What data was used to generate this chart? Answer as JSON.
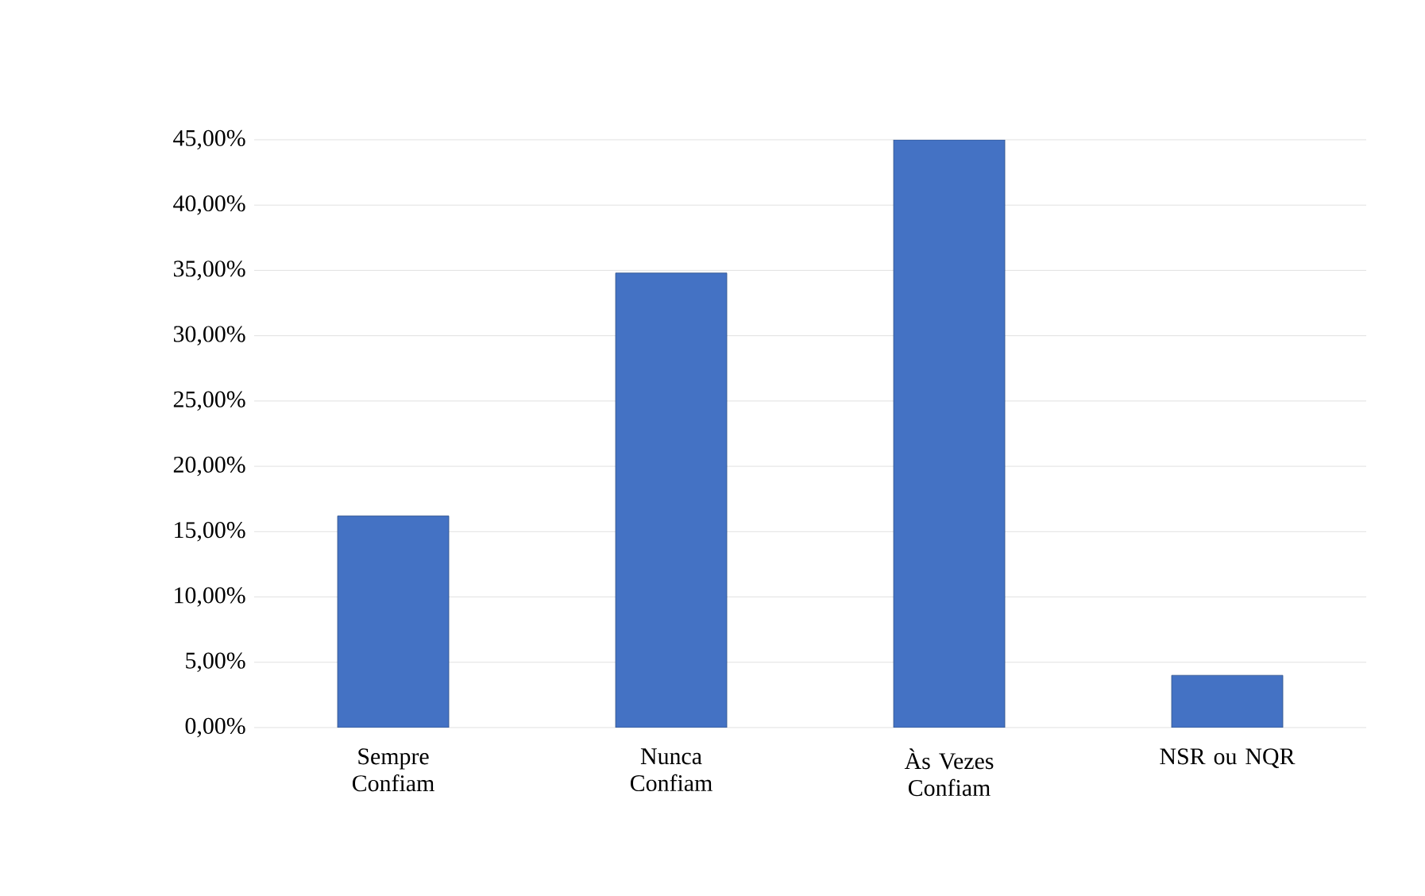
{
  "chart_data": {
    "type": "bar",
    "categories": [
      "Sempre Confiam",
      "Nunca Confiam",
      "Às Vezes Confiam",
      "NSR ou NQR"
    ],
    "values": [
      16.2,
      34.8,
      45.0,
      4.0
    ],
    "color": "#4472c4",
    "ylim": [
      0,
      45
    ],
    "yticks": [
      {
        "value": 0,
        "label": "0,00%"
      },
      {
        "value": 5,
        "label": "5,00%"
      },
      {
        "value": 10,
        "label": "10,00%"
      },
      {
        "value": 15,
        "label": "15,00%"
      },
      {
        "value": 20,
        "label": "20,00%"
      },
      {
        "value": 25,
        "label": "25,00%"
      },
      {
        "value": 30,
        "label": "30,00%"
      },
      {
        "value": 35,
        "label": "35,00%"
      },
      {
        "value": 40,
        "label": "40,00%"
      },
      {
        "value": 45,
        "label": "45,00%"
      }
    ],
    "grid": "y"
  }
}
